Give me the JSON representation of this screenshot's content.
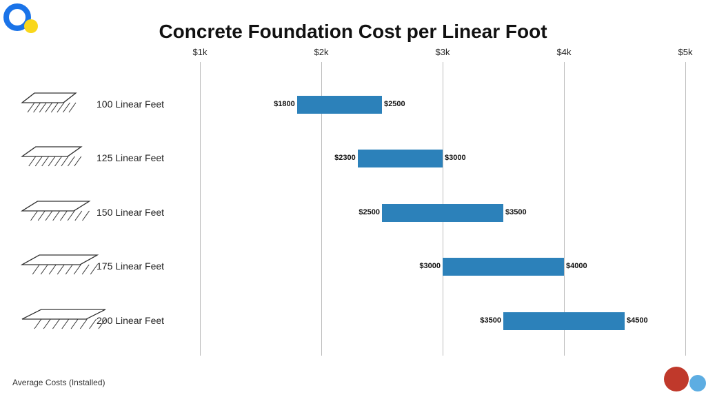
{
  "title": "Concrete Foundation Cost per Linear Foot",
  "footnote": "Average Costs (Installed)",
  "chart": {
    "type": "range-bar",
    "bar_color": "#2c81ba",
    "grid_color": "#bbbbbb",
    "background_color": "#ffffff",
    "text_color": "#111111",
    "title_fontsize": 28,
    "label_fontsize": 14,
    "value_fontsize": 11,
    "xmin": 1000,
    "xmax": 5000,
    "xticks": [
      {
        "value": 1000,
        "label": "$1k"
      },
      {
        "value": 2000,
        "label": "$2k"
      },
      {
        "value": 3000,
        "label": "$3k"
      },
      {
        "value": 4000,
        "label": "$4k"
      },
      {
        "value": 5000,
        "label": "$5k"
      }
    ],
    "rows": [
      {
        "label": "100 Linear Feet",
        "low": 1800,
        "high": 2500,
        "low_label": "$1800",
        "high_label": "$2500"
      },
      {
        "label": "125 Linear Feet",
        "low": 2300,
        "high": 3000,
        "low_label": "$2300",
        "high_label": "$3000"
      },
      {
        "label": "150 Linear Feet",
        "low": 2500,
        "high": 3500,
        "low_label": "$2500",
        "high_label": "$3500"
      },
      {
        "label": "175 Linear Feet",
        "low": 3000,
        "high": 4000,
        "low_label": "$3000",
        "high_label": "$4000"
      },
      {
        "label": "200 Linear Feet",
        "low": 3500,
        "high": 4500,
        "low_label": "$3500",
        "high_label": "$4500"
      }
    ],
    "icon_scales": [
      1.0,
      1.1,
      1.25,
      1.4,
      1.55
    ]
  },
  "decor": {
    "ring_color": "#1a73e8",
    "yellow_dot": "#f9d71c",
    "red_dot": "#c0392b",
    "blue_dot": "#5dade2"
  }
}
